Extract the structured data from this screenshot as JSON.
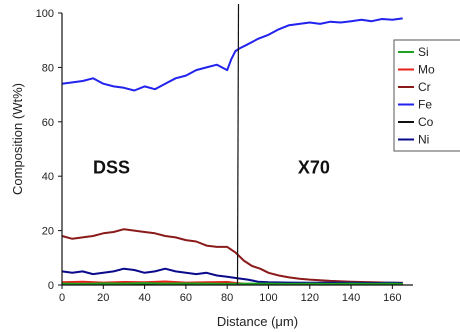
{
  "chart_data": {
    "type": "line",
    "xlabel": "Distance (μm)",
    "ylabel": "Composition (Wt%)",
    "xlim": [
      0,
      170
    ],
    "ylim": [
      0,
      100
    ],
    "x_ticks": [
      "0",
      "20",
      "40",
      "60",
      "80",
      "100",
      "120",
      "140",
      "160"
    ],
    "y_ticks": [
      "0",
      "20",
      "40",
      "60",
      "80",
      "100"
    ],
    "boundary_x": 85,
    "annotations": [
      {
        "text": "DSS",
        "x": 24,
        "y": 41
      },
      {
        "text": "X70",
        "x": 122,
        "y": 41
      }
    ],
    "legend": {
      "placement": "right",
      "entries": [
        "Si",
        "Mo",
        "Cr",
        "Fe",
        "Co",
        "Ni"
      ]
    },
    "series": [
      {
        "name": "Si",
        "color": "#1fa21f",
        "x": [
          0,
          10,
          20,
          30,
          40,
          50,
          60,
          70,
          80,
          90,
          100,
          110,
          120,
          130,
          140,
          150,
          160,
          165
        ],
        "y": [
          0.5,
          0.4,
          0.6,
          0.5,
          0.7,
          0.5,
          0.6,
          0.5,
          0.4,
          0.5,
          0.5,
          0.4,
          0.5,
          0.4,
          0.5,
          0.4,
          0.5,
          0.4
        ]
      },
      {
        "name": "Mo",
        "color": "#e8201a",
        "x": [
          0,
          10,
          20,
          30,
          40,
          50,
          60,
          70,
          80,
          90,
          100,
          110,
          120,
          130,
          140,
          150,
          160,
          165
        ],
        "y": [
          1.0,
          1.2,
          0.9,
          1.1,
          1.0,
          1.3,
          0.9,
          1.0,
          1.1,
          0.3,
          0.2,
          0.3,
          0.2,
          0.2,
          0.3,
          0.2,
          0.2,
          0.2
        ]
      },
      {
        "name": "Cr",
        "color": "#8b1a1a",
        "x": [
          0,
          5,
          10,
          15,
          20,
          25,
          30,
          35,
          40,
          45,
          50,
          55,
          60,
          65,
          70,
          75,
          80,
          84,
          88,
          92,
          96,
          100,
          105,
          110,
          115,
          120,
          130,
          140,
          150,
          160,
          165
        ],
        "y": [
          18,
          17,
          17.5,
          18,
          19,
          19.5,
          20.5,
          20,
          19.5,
          19,
          18,
          17.5,
          16.5,
          16,
          14.5,
          14,
          14,
          12,
          9,
          7,
          6,
          4.5,
          3.5,
          2.8,
          2.3,
          2,
          1.5,
          1.2,
          1,
          0.8,
          0.8
        ]
      },
      {
        "name": "Fe",
        "color": "#2222ee",
        "x": [
          0,
          5,
          10,
          15,
          20,
          25,
          30,
          35,
          40,
          45,
          50,
          55,
          60,
          65,
          70,
          75,
          80,
          82,
          84,
          86,
          90,
          95,
          100,
          105,
          110,
          115,
          120,
          125,
          130,
          135,
          140,
          145,
          150,
          155,
          160,
          165
        ],
        "y": [
          74,
          74.5,
          75,
          76,
          74,
          73,
          72.5,
          71.5,
          73,
          72,
          74,
          76,
          77,
          79,
          80,
          81,
          79,
          83,
          86,
          87,
          88.5,
          90.5,
          92,
          94,
          95.5,
          96,
          96.5,
          96,
          96.8,
          96.5,
          97,
          97.5,
          97,
          97.8,
          97.5,
          98
        ]
      },
      {
        "name": "Co",
        "color": "#111111",
        "x": [
          0,
          10,
          20,
          30,
          40,
          50,
          60,
          70,
          80,
          90,
          100,
          110,
          120,
          130,
          140,
          150,
          160,
          165
        ],
        "y": [
          0.3,
          0.4,
          0.3,
          0.5,
          0.4,
          0.3,
          0.4,
          0.3,
          0.4,
          0.3,
          0.3,
          0.2,
          0.3,
          0.2,
          0.3,
          0.2,
          0.2,
          0.2
        ]
      },
      {
        "name": "Ni",
        "color": "#0a0a8c",
        "x": [
          0,
          5,
          10,
          15,
          20,
          25,
          30,
          35,
          40,
          45,
          50,
          55,
          60,
          65,
          70,
          75,
          80,
          85,
          90,
          95,
          100,
          110,
          120,
          130,
          140,
          150,
          160,
          165
        ],
        "y": [
          5,
          4.5,
          5,
          4,
          4.5,
          5,
          6,
          5.5,
          4.5,
          5,
          6,
          5,
          4.5,
          4,
          4.5,
          3.5,
          3,
          2.5,
          2,
          1.2,
          1,
          0.9,
          0.8,
          0.9,
          0.8,
          0.7,
          0.8,
          0.7
        ]
      }
    ]
  }
}
